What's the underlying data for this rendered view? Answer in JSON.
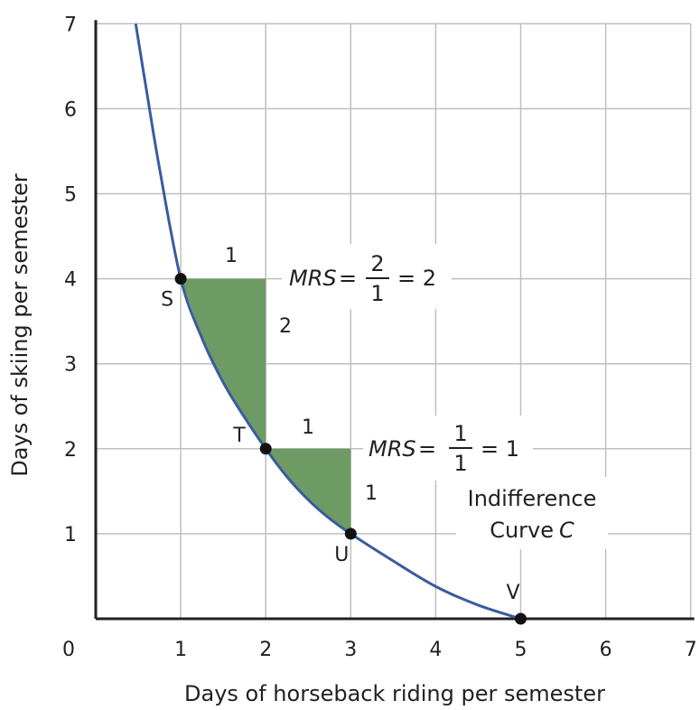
{
  "chart_data": {
    "type": "line",
    "xlabel": "Days of horseback riding per semester",
    "ylabel": "Days of skiing per semester",
    "xlim": [
      0,
      7
    ],
    "ylim": [
      0,
      7
    ],
    "origin_label": "0",
    "x_ticks": [
      1,
      2,
      3,
      4,
      5,
      6,
      7
    ],
    "y_ticks": [
      1,
      2,
      3,
      4,
      5,
      6,
      7
    ],
    "grid": true,
    "colors": {
      "curve": "#3a5ba0",
      "fill": "#6e9a63",
      "grid": "#bfbfbf",
      "axis": "#231f20"
    },
    "curve": {
      "x": [
        0.47,
        0.6,
        0.75,
        1,
        1.25,
        1.5,
        1.75,
        2,
        2.25,
        2.5,
        2.75,
        3,
        3.5,
        4,
        4.5,
        5
      ],
      "y": [
        7,
        6.2,
        5.3,
        4,
        3.3,
        2.78,
        2.37,
        2,
        1.67,
        1.4,
        1.18,
        1,
        0.68,
        0.38,
        0.16,
        0
      ]
    },
    "points": [
      {
        "label": "S",
        "x": 1,
        "y": 4
      },
      {
        "label": "T",
        "x": 2,
        "y": 2
      },
      {
        "label": "U",
        "x": 3,
        "y": 1
      },
      {
        "label": "V",
        "x": 5,
        "y": 0
      }
    ],
    "steps": [
      {
        "from": "S",
        "to": "T",
        "run_label": "1",
        "rise_label": "2",
        "mrs_prefix": "MRS",
        "num": "2",
        "den": "1",
        "result": "= 2"
      },
      {
        "from": "T",
        "to": "U",
        "run_label": "1",
        "rise_label": "1",
        "mrs_prefix": "MRS",
        "num": "1",
        "den": "1",
        "result": "= 1"
      }
    ],
    "curve_label_line1": "Indifference",
    "curve_label_line2_text": "Curve",
    "curve_label_line2_italic": "C"
  }
}
